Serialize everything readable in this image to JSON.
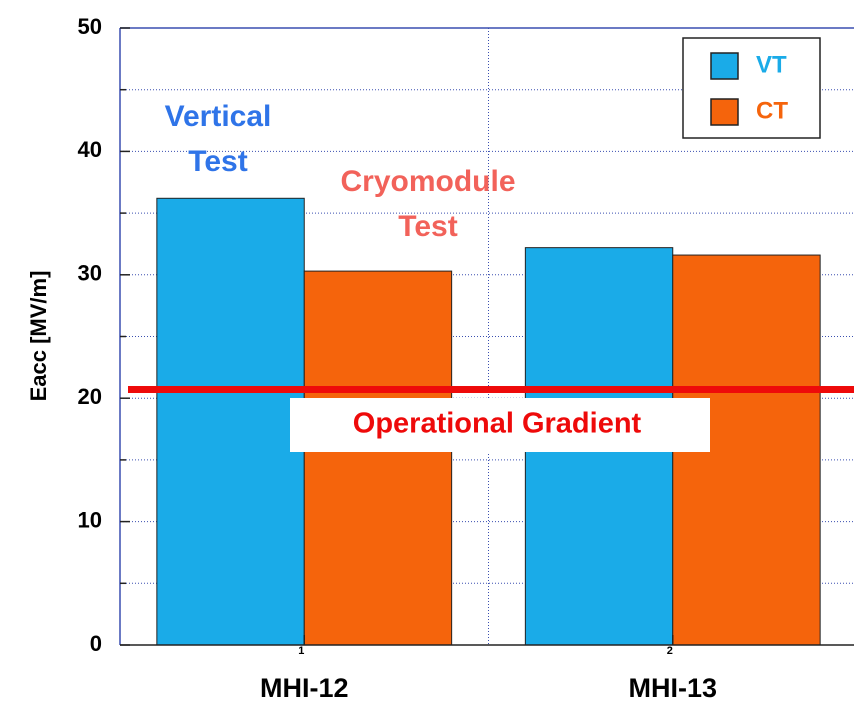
{
  "chart_data": {
    "type": "bar",
    "y_label": "Eacc  [MV/m]",
    "categories": [
      "MHI-12",
      "MHI-13"
    ],
    "x": [
      1,
      2
    ],
    "xlim": [
      0.5,
      2.5
    ],
    "xticks": [
      1,
      2
    ],
    "xminorticks": [
      1.5
    ],
    "ylim": [
      0,
      50
    ],
    "yticks": [
      0,
      10,
      20,
      30,
      40,
      50
    ],
    "yminorticks": [
      5,
      15,
      25,
      35,
      45
    ],
    "grid": true,
    "legend": "upper right",
    "series": [
      {
        "name": "VT",
        "color": "#1aabe8",
        "values": [
          36.2,
          32.2
        ]
      },
      {
        "name": "CT",
        "color": "#f5640c",
        "values": [
          30.3,
          31.6
        ]
      }
    ],
    "annotations": [
      {
        "lines": [
          "Vertical",
          "Test"
        ],
        "color": "#2f74e8"
      },
      {
        "lines": [
          "Cryomodule",
          "Test"
        ],
        "color": "#f2625a"
      }
    ],
    "reference_line": {
      "value": 20.7,
      "label": "Operational Gradient",
      "color": "#ee0a0a"
    }
  }
}
